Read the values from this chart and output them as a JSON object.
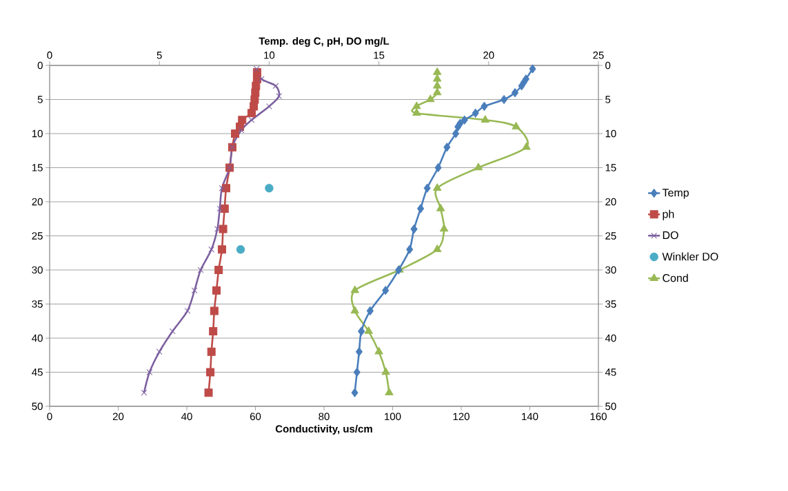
{
  "chart_data": {
    "type": "line",
    "xlabel": "Conductivity, us/cm",
    "x2label": "Temp. deg C, pH, DO mg/L",
    "xlim": [
      0,
      160
    ],
    "xticks": [
      0,
      20,
      40,
      60,
      80,
      100,
      120,
      140,
      160
    ],
    "x2lim": [
      0,
      25
    ],
    "x2ticks": [
      0,
      5,
      10,
      15,
      20,
      25
    ],
    "ylim": [
      50,
      0
    ],
    "yticks": [
      0,
      5,
      10,
      15,
      20,
      25,
      30,
      35,
      40,
      45,
      50
    ],
    "y2lim": [
      50,
      0
    ],
    "y2ticks": [
      0,
      5,
      10,
      15,
      20,
      25,
      30,
      35,
      40,
      45,
      50
    ],
    "grid": "y",
    "legend": "right",
    "series": [
      {
        "name": "Temp",
        "color": "#4a7ebb",
        "marker": "diamond",
        "axis": "x2",
        "x": [
          22.0,
          21.7,
          21.6,
          21.5,
          21.2,
          20.7,
          19.8,
          19.4,
          18.9,
          18.7,
          18.6,
          18.5,
          18.1,
          17.7,
          17.2,
          16.9,
          16.6,
          16.4,
          15.9,
          15.3,
          14.6,
          14.2,
          14.1,
          14.0,
          13.9
        ],
        "values": [
          0.5,
          2,
          2.5,
          3,
          4,
          5,
          6,
          7,
          8,
          8.5,
          9,
          10,
          12,
          15,
          18,
          21,
          24,
          27,
          30,
          33,
          36,
          39,
          42,
          45,
          48
        ]
      },
      {
        "name": "ph",
        "color": "#be4b48",
        "marker": "square",
        "axis": "x2",
        "x": [
          9.45,
          9.45,
          9.4,
          9.37,
          9.34,
          9.3,
          9.2,
          8.77,
          8.67,
          8.45,
          8.32,
          8.2,
          8.04,
          7.97,
          7.9,
          7.85,
          7.7,
          7.6,
          7.5,
          7.45,
          7.37,
          7.32,
          7.24
        ],
        "values": [
          1,
          2,
          3,
          4,
          5,
          6,
          7,
          8,
          9,
          10,
          12,
          15,
          18,
          21,
          24,
          27,
          30,
          33,
          36,
          39,
          42,
          45,
          48
        ]
      },
      {
        "name": "DO",
        "color": "#7d60a0",
        "marker": "cross",
        "axis": "x2",
        "x": [
          9.43,
          9.65,
          10.3,
          10.45,
          10.0,
          9.2,
          8.73,
          8.32,
          8.2,
          7.85,
          7.75,
          7.64,
          7.37,
          6.88,
          6.6,
          6.28,
          5.6,
          5.0,
          4.55,
          4.3
        ],
        "values": [
          0.5,
          2,
          3,
          4.5,
          6,
          8,
          9.5,
          12,
          15,
          18,
          21,
          24,
          27,
          30,
          33,
          36,
          39,
          42,
          45,
          48
        ]
      },
      {
        "name": "Winkler DO",
        "type": "scatter",
        "color": "#4bacc6",
        "marker": "circle",
        "axis": "x2",
        "x": [
          10.0,
          8.7
        ],
        "values": [
          18,
          27
        ]
      },
      {
        "name": "Cond",
        "color": "#98b954",
        "marker": "triangle",
        "x": [
          113,
          113,
          113,
          113,
          111,
          107,
          107,
          127,
          136,
          139,
          125,
          113,
          114,
          115,
          113,
          102,
          89,
          89,
          93,
          96,
          98,
          99
        ],
        "values": [
          1,
          2,
          3,
          4,
          5,
          6,
          7,
          8,
          9,
          12,
          15,
          18,
          21,
          24,
          27,
          30,
          33,
          36,
          39,
          42,
          45,
          48
        ]
      }
    ]
  }
}
